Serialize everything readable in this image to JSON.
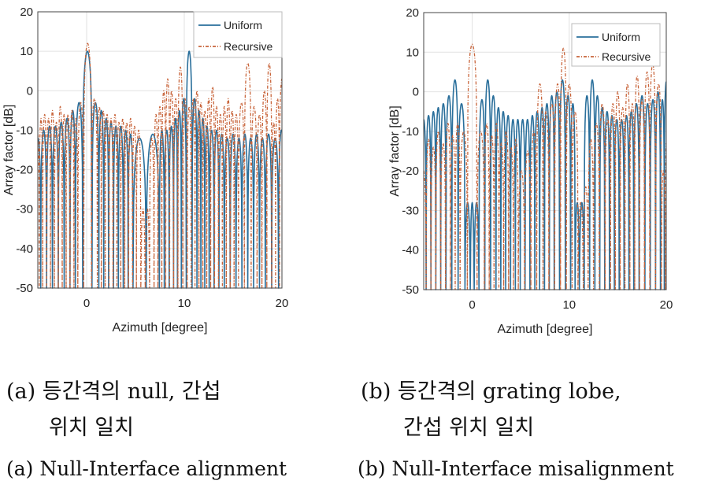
{
  "chart_data": [
    {
      "id": "a",
      "type": "line",
      "xlabel": "Azimuth [degree]",
      "ylabel": "Array factor [dB]",
      "xlim": [
        -5,
        20
      ],
      "ylim": [
        -50,
        20
      ],
      "xticks": [
        0,
        10,
        20
      ],
      "yticks": [
        20,
        10,
        0,
        -10,
        -20,
        -30,
        -40,
        -50
      ],
      "legend_position": "top-right",
      "series": [
        {
          "name": "Uniform",
          "color": "#2a6f9b",
          "style": "solid",
          "lobes": [
            [
              -5.0,
              -12
            ],
            [
              -4.4,
              -10
            ],
            [
              -3.8,
              -9
            ],
            [
              -3.2,
              -9
            ],
            [
              -2.6,
              -8
            ],
            [
              -2.0,
              -7
            ],
            [
              -1.4,
              -5
            ],
            [
              -0.9,
              -3
            ],
            [
              0.1,
              10
            ],
            [
              1.0,
              -3
            ],
            [
              1.5,
              -5
            ],
            [
              2.0,
              -7
            ],
            [
              2.5,
              -8
            ],
            [
              3.0,
              -9
            ],
            [
              3.5,
              -9
            ],
            [
              4.0,
              -10
            ],
            [
              4.5,
              -11
            ],
            [
              5.0,
              -12
            ],
            [
              7.2,
              -11
            ],
            [
              7.7,
              -10
            ],
            [
              8.2,
              -10
            ],
            [
              8.7,
              -9
            ],
            [
              9.1,
              -7
            ],
            [
              9.5,
              -5
            ],
            [
              9.9,
              -2
            ],
            [
              10.5,
              10
            ],
            [
              11.1,
              -2
            ],
            [
              11.5,
              -5
            ],
            [
              11.9,
              -7
            ],
            [
              12.3,
              -9
            ],
            [
              12.8,
              -10
            ],
            [
              13.3,
              -10
            ],
            [
              13.8,
              -11
            ],
            [
              14.4,
              -12
            ],
            [
              15.0,
              -11
            ],
            [
              15.6,
              -12
            ],
            [
              16.2,
              -11
            ],
            [
              16.8,
              -12
            ],
            [
              17.4,
              -11
            ],
            [
              18.0,
              -12
            ],
            [
              18.6,
              -11
            ],
            [
              19.3,
              -12
            ],
            [
              20.0,
              -10
            ]
          ]
        },
        {
          "name": "Recursive",
          "color": "#c8643a",
          "style": "dashdot",
          "lobes": [
            [
              -5.0,
              -10
            ],
            [
              -4.7,
              -7
            ],
            [
              -4.3,
              -6
            ],
            [
              -3.9,
              -7
            ],
            [
              -3.5,
              -5
            ],
            [
              -3.1,
              -8
            ],
            [
              -2.7,
              -4
            ],
            [
              -2.3,
              -6
            ],
            [
              -1.9,
              -6
            ],
            [
              -1.5,
              -5
            ],
            [
              -1.1,
              -7
            ],
            [
              -0.7,
              -3
            ],
            [
              0.1,
              12
            ],
            [
              0.9,
              -2
            ],
            [
              1.3,
              -4
            ],
            [
              1.7,
              -5
            ],
            [
              2.1,
              -6
            ],
            [
              2.5,
              -7
            ],
            [
              2.9,
              -6
            ],
            [
              3.3,
              -8
            ],
            [
              3.7,
              -7
            ],
            [
              4.1,
              -8
            ],
            [
              4.5,
              -7
            ],
            [
              4.9,
              -9
            ],
            [
              5.3,
              -10
            ],
            [
              5.8,
              -30
            ],
            [
              6.2,
              -30
            ],
            [
              6.7,
              -12
            ],
            [
              7.1,
              -6
            ],
            [
              7.5,
              -4
            ],
            [
              7.9,
              0
            ],
            [
              8.3,
              3
            ],
            [
              8.7,
              0
            ],
            [
              9.1,
              -2
            ],
            [
              9.6,
              6
            ],
            [
              10.1,
              -2
            ],
            [
              10.5,
              -4
            ],
            [
              10.9,
              -2
            ],
            [
              11.3,
              0
            ],
            [
              11.7,
              -3
            ],
            [
              12.1,
              -5
            ],
            [
              12.5,
              -2
            ],
            [
              12.9,
              1
            ],
            [
              13.3,
              -4
            ],
            [
              13.7,
              -6
            ],
            [
              14.1,
              -4
            ],
            [
              14.5,
              -2
            ],
            [
              14.9,
              -5
            ],
            [
              15.3,
              -6
            ],
            [
              15.8,
              -3
            ],
            [
              16.5,
              7
            ],
            [
              17.2,
              -4
            ],
            [
              17.7,
              -6
            ],
            [
              18.2,
              0
            ],
            [
              18.7,
              7
            ],
            [
              19.2,
              -8
            ],
            [
              19.5,
              -2
            ],
            [
              20.0,
              3
            ]
          ]
        }
      ]
    },
    {
      "id": "b",
      "type": "line",
      "xlabel": "Azimuth [degree]",
      "ylabel": "Array factor [dB]",
      "xlim": [
        -5,
        20
      ],
      "ylim": [
        -50,
        20
      ],
      "xticks": [
        0,
        10,
        20
      ],
      "yticks": [
        20,
        10,
        0,
        -10,
        -20,
        -30,
        -40,
        -50
      ],
      "legend_position": "top-right",
      "series": [
        {
          "name": "Uniform",
          "color": "#2a6f9b",
          "style": "solid",
          "lobes": [
            [
              -5.0,
              -7
            ],
            [
              -4.5,
              -6
            ],
            [
              -4.0,
              -5
            ],
            [
              -3.5,
              -4
            ],
            [
              -3.0,
              -3
            ],
            [
              -2.4,
              -1
            ],
            [
              -1.8,
              3
            ],
            [
              -1.1,
              -3
            ],
            [
              -0.4,
              -28
            ],
            [
              0.0,
              -28
            ],
            [
              0.4,
              -28
            ],
            [
              1.0,
              -2
            ],
            [
              1.6,
              3
            ],
            [
              2.2,
              -1
            ],
            [
              2.7,
              -4
            ],
            [
              3.2,
              -5
            ],
            [
              3.7,
              -6
            ],
            [
              4.2,
              -7
            ],
            [
              4.7,
              -7
            ],
            [
              5.2,
              -7
            ],
            [
              5.7,
              -7
            ],
            [
              6.2,
              -6
            ],
            [
              6.7,
              -5
            ],
            [
              7.2,
              -4
            ],
            [
              7.7,
              -3
            ],
            [
              8.2,
              -1
            ],
            [
              8.7,
              0
            ],
            [
              9.3,
              3
            ],
            [
              9.9,
              -1
            ],
            [
              10.4,
              -3
            ],
            [
              10.8,
              -28
            ],
            [
              11.3,
              -28
            ],
            [
              11.8,
              -1
            ],
            [
              12.4,
              3
            ],
            [
              12.9,
              -1
            ],
            [
              13.4,
              -4
            ],
            [
              13.9,
              -5
            ],
            [
              14.4,
              -6
            ],
            [
              14.9,
              -7
            ],
            [
              15.4,
              -7
            ],
            [
              15.9,
              -6
            ],
            [
              16.4,
              -5
            ],
            [
              16.9,
              -3
            ],
            [
              17.5,
              -1
            ],
            [
              18.1,
              -3
            ],
            [
              18.6,
              -2
            ],
            [
              19.2,
              0
            ],
            [
              19.6,
              -2
            ],
            [
              20.0,
              3
            ]
          ]
        },
        {
          "name": "Recursive",
          "color": "#c8643a",
          "style": "dashdot",
          "lobes": [
            [
              -5.0,
              -20
            ],
            [
              -4.5,
              -12
            ],
            [
              -4.0,
              -14
            ],
            [
              -3.5,
              -10
            ],
            [
              -3.0,
              -13
            ],
            [
              -2.5,
              -8
            ],
            [
              -2.0,
              -11
            ],
            [
              -1.5,
              -8
            ],
            [
              -1.0,
              -10
            ],
            [
              0.0,
              12
            ],
            [
              1.0,
              -10
            ],
            [
              1.5,
              -8
            ],
            [
              2.0,
              -11
            ],
            [
              2.5,
              -8
            ],
            [
              3.0,
              -13
            ],
            [
              3.5,
              -10
            ],
            [
              4.0,
              -14
            ],
            [
              4.5,
              -12
            ],
            [
              5.0,
              -20
            ],
            [
              5.8,
              -15
            ],
            [
              6.3,
              -10
            ],
            [
              7.0,
              2
            ],
            [
              7.6,
              -5
            ],
            [
              8.2,
              -3
            ],
            [
              8.8,
              2
            ],
            [
              9.4,
              11
            ],
            [
              10.0,
              2
            ],
            [
              10.6,
              -5
            ],
            [
              11.2,
              -28
            ],
            [
              11.7,
              -24
            ],
            [
              12.2,
              -12
            ],
            [
              12.8,
              -8
            ],
            [
              13.4,
              -3
            ],
            [
              14.0,
              -7
            ],
            [
              14.5,
              -3
            ],
            [
              15.0,
              0
            ],
            [
              15.5,
              -4
            ],
            [
              16.0,
              2
            ],
            [
              16.5,
              -3
            ],
            [
              17.0,
              4
            ],
            [
              17.5,
              -2
            ],
            [
              18.0,
              5
            ],
            [
              18.6,
              7
            ],
            [
              19.2,
              2
            ],
            [
              19.8,
              -20
            ],
            [
              20.0,
              -10
            ]
          ]
        }
      ]
    }
  ],
  "captions": {
    "a_korean_line1": "(a) 등간격의 null, 간섭",
    "a_korean_line2": "위치 일치",
    "b_korean_line1": "(b) 등간격의 grating lobe,",
    "b_korean_line2": "간섭 위치 일치",
    "a_english": "(a) Null-Interface alignment",
    "b_english": "(b) Null-Interface misalignment"
  }
}
